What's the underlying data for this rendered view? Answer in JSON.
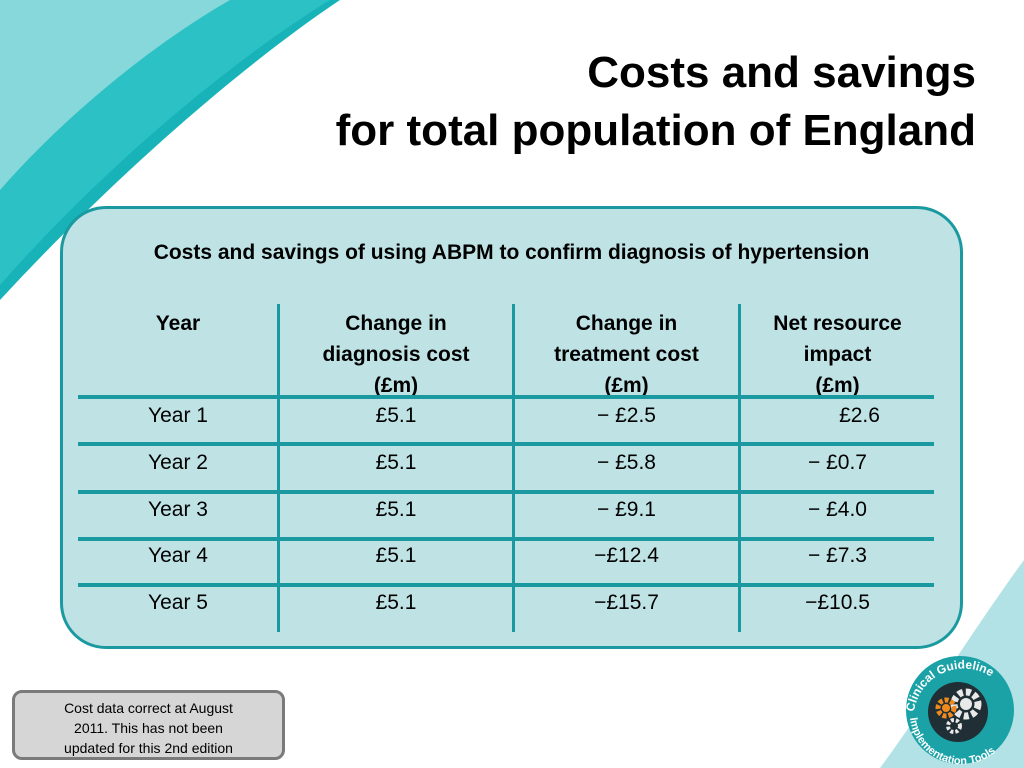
{
  "slide": {
    "title_line1": "Costs and savings",
    "title_line2": "for total population of England"
  },
  "table": {
    "caption": "Costs and savings of using ABPM to confirm diagnosis of hypertension",
    "headers": [
      {
        "line1": "Year",
        "line2": "",
        "line3": ""
      },
      {
        "line1": "Change in",
        "line2": "diagnosis cost",
        "line3": "(£m)"
      },
      {
        "line1": "Change in",
        "line2": "treatment cost",
        "line3": "(£m)"
      },
      {
        "line1": "Net resource",
        "line2": "impact",
        "line3": "(£m)"
      }
    ],
    "rows": [
      [
        "Year 1",
        "£5.1",
        "− £2.5",
        "£2.6"
      ],
      [
        "Year 2",
        "£5.1",
        "− £5.8",
        "− £0.7"
      ],
      [
        "Year 3",
        "£5.1",
        "− £9.1",
        "− £4.0"
      ],
      [
        "Year 4",
        "£5.1",
        "−£12.4",
        "− £7.3"
      ],
      [
        "Year 5",
        "£5.1",
        "−£15.7",
        "−£10.5"
      ]
    ]
  },
  "note": {
    "line1": "Cost data correct at August",
    "line2": "2011.  This has not been",
    "line3": "updated for this 2nd edition"
  },
  "logo": {
    "text": "Clinical Guideline Implementation Tools",
    "icon": "gears-icon"
  },
  "colors": {
    "teal": "#1a9aa0",
    "panel_fill": "#bfe3e5",
    "note_fill": "#d6d6d6"
  }
}
